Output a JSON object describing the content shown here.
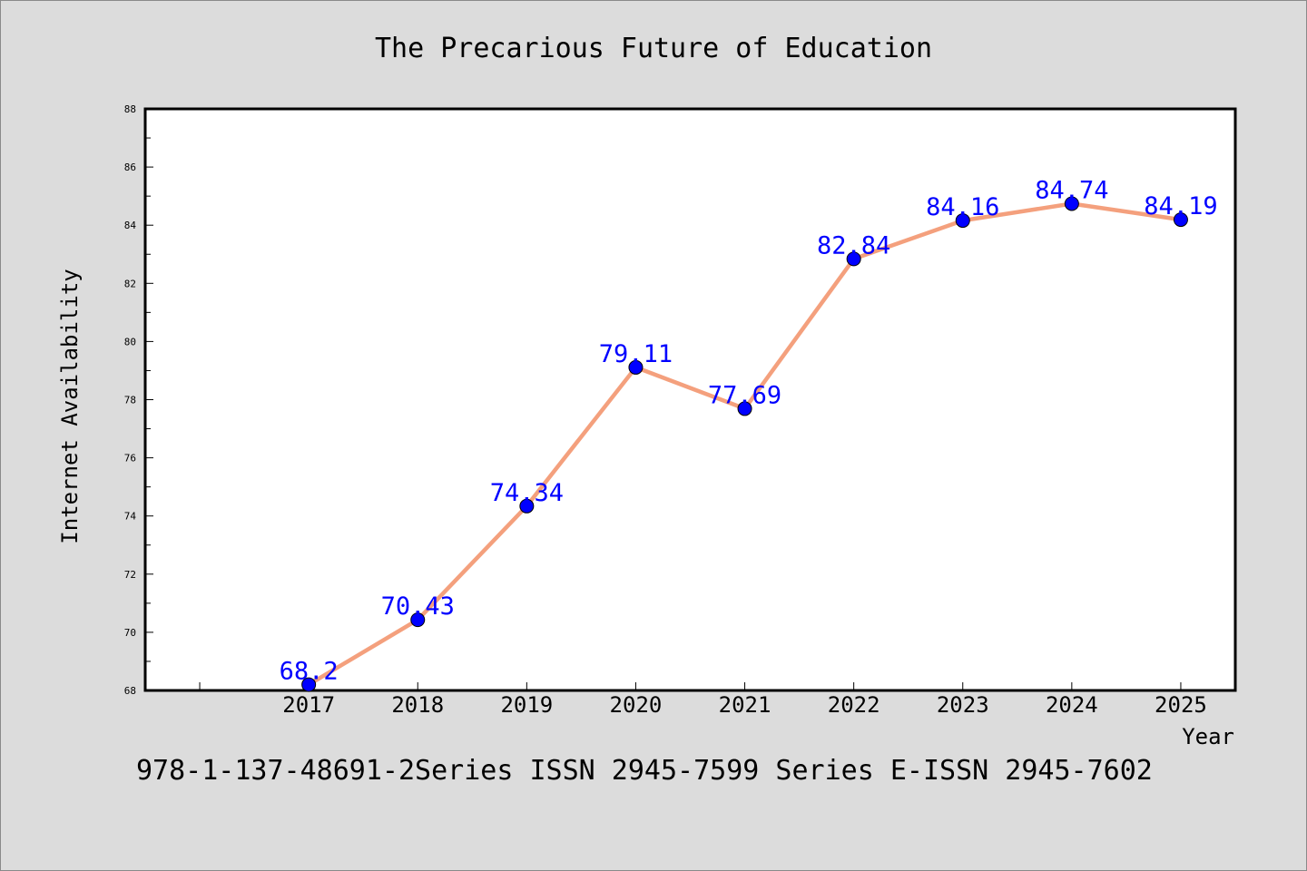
{
  "footer_text": "978-1-137-48691-2Series ISSN 2945-7599 Series E-ISSN 2945-7602",
  "chart_data": {
    "type": "line",
    "title": "The Precarious Future of Education",
    "xlabel": "Year",
    "ylabel": "Internet Availability",
    "x": [
      2017,
      2018,
      2019,
      2020,
      2021,
      2022,
      2023,
      2024,
      2025
    ],
    "series": [
      {
        "values": [
          68.2,
          70.43,
          74.34,
          79.11,
          77.69,
          82.84,
          84.16,
          84.74,
          84.19
        ],
        "data_labels": [
          "68.2",
          "70.43",
          "74.34",
          "79.11",
          "77.69",
          "82.84",
          "84.16",
          "84.74",
          "84.19"
        ]
      }
    ],
    "x_ticks": [
      "2017",
      "2018",
      "2019",
      "2020",
      "2021",
      "2022",
      "2023",
      "2024",
      "2025"
    ],
    "y_ticks": [
      "68",
      "70",
      "72",
      "74",
      "76",
      "78",
      "80",
      "82",
      "84",
      "86",
      "88"
    ],
    "ylim": [
      68,
      88
    ],
    "xlim": [
      2015.5,
      2025.5
    ],
    "grid": false,
    "colors": {
      "line": "#f4a07d",
      "marker": "#0000ff",
      "data_label": "#0000ff",
      "background": "#dcdcdc",
      "plot_background": "#ffffff"
    }
  }
}
